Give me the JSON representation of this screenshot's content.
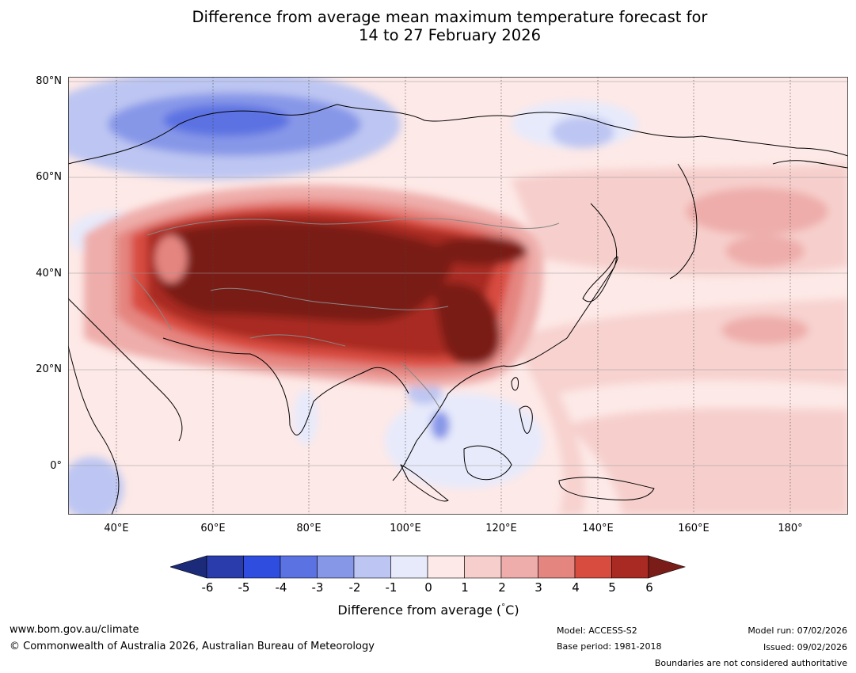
{
  "title": {
    "line1": "Difference from average mean maximum temperature forecast for",
    "line2": "14 to 27 February 2026"
  },
  "map": {
    "lat_labels": [
      "80°N",
      "60°N",
      "40°N",
      "20°N",
      "0°"
    ],
    "lon_labels": [
      "40°E",
      "60°E",
      "80°E",
      "100°E",
      "120°E",
      "140°E",
      "160°E",
      "180°"
    ],
    "lat_range": [
      -10,
      80
    ],
    "lon_range": [
      30,
      192
    ],
    "anomaly_regions": [
      {
        "name": "central-asia-hot-core",
        "value": "6+"
      },
      {
        "name": "southern-china-hot-core",
        "value": "6+"
      },
      {
        "name": "arctic-russia-cool",
        "value": "-3 to -4"
      },
      {
        "name": "indochina-cool",
        "value": "-1 to -2"
      },
      {
        "name": "pacific-warm",
        "value": "1 to 2"
      }
    ]
  },
  "colorbar": {
    "ticks": [
      "-6",
      "-5",
      "-4",
      "-3",
      "-2",
      "-1",
      "0",
      "1",
      "2",
      "3",
      "4",
      "5",
      "6"
    ],
    "colors": [
      "#1b2b7a",
      "#2a3cac",
      "#2f4ee0",
      "#5b72e2",
      "#8797e8",
      "#bdc6f2",
      "#e7eafb",
      "#fde9e7",
      "#f6cfcc",
      "#eeadaa",
      "#e58580",
      "#d84c40",
      "#a92a23",
      "#7a1d18"
    ],
    "label": "Difference from average (",
    "label_deg": "°",
    "label_unit": "C)"
  },
  "footer": {
    "website": "www.bom.gov.au/climate",
    "copyright": "© Commonwealth of Australia 2026, Australian Bureau of Meteorology",
    "model": "Model: ACCESS-S2",
    "base_period": "Base period: 1981-2018",
    "model_run": "Model run: 07/02/2026",
    "issued": "Issued: 09/02/2026",
    "disclaimer": "Boundaries are not considered authoritative"
  }
}
